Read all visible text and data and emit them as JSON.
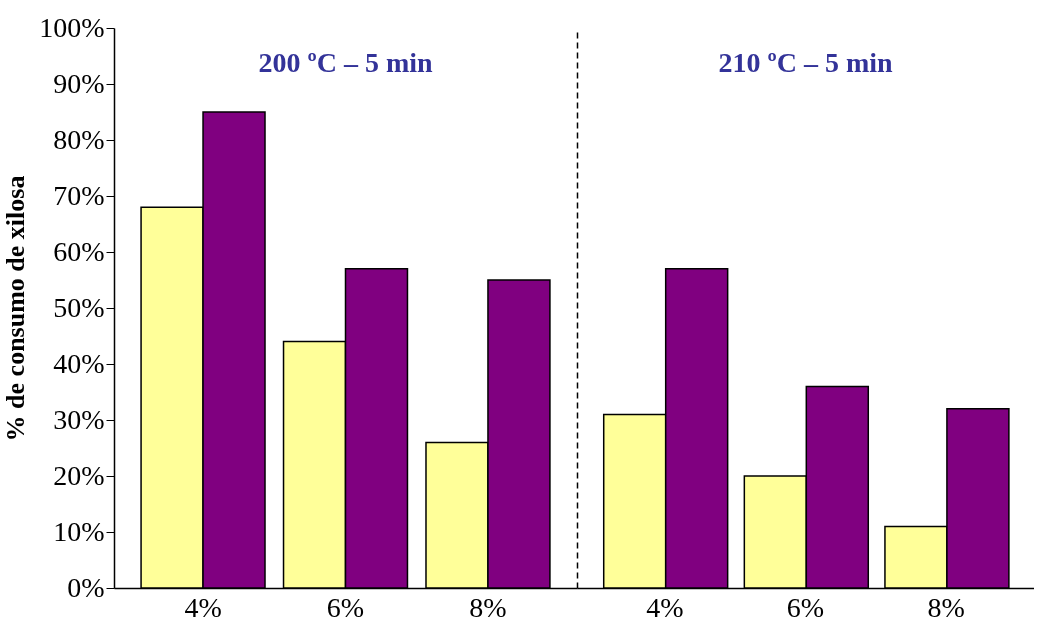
{
  "chart_data": [
    {
      "type": "bar",
      "ylabel": "% de consumo de xilosa",
      "annotations": [
        "200 ºC – 5 min"
      ],
      "categories": [
        "4%",
        "6%",
        "8%"
      ],
      "series": [
        {
          "color": "#ffff99",
          "values": [
            68,
            44,
            26
          ]
        },
        {
          "color": "#800080",
          "values": [
            85,
            57,
            55
          ]
        }
      ],
      "ylim": [
        0,
        100
      ],
      "yticks": [
        {
          "value": 0,
          "label": "0%"
        },
        {
          "value": 10,
          "label": "10%"
        },
        {
          "value": 20,
          "label": "20%"
        },
        {
          "value": 30,
          "label": "30%"
        },
        {
          "value": 40,
          "label": "40%"
        },
        {
          "value": 50,
          "label": "50%"
        },
        {
          "value": 60,
          "label": "60%"
        },
        {
          "value": 70,
          "label": "70%"
        },
        {
          "value": 80,
          "label": "80%"
        },
        {
          "value": 90,
          "label": "90%"
        },
        {
          "value": 100,
          "label": "100%"
        }
      ],
      "grid": false,
      "legend": false
    },
    {
      "type": "bar",
      "annotations": [
        "210 ºC – 5 min"
      ],
      "categories": [
        "4%",
        "6%",
        "8%"
      ],
      "series": [
        {
          "color": "#ffff99",
          "values": [
            31,
            20,
            11
          ]
        },
        {
          "color": "#800080",
          "values": [
            57,
            36,
            32
          ]
        }
      ],
      "ylim": [
        0,
        100
      ],
      "tick_labels": "x",
      "grid": false,
      "legend": false
    }
  ]
}
